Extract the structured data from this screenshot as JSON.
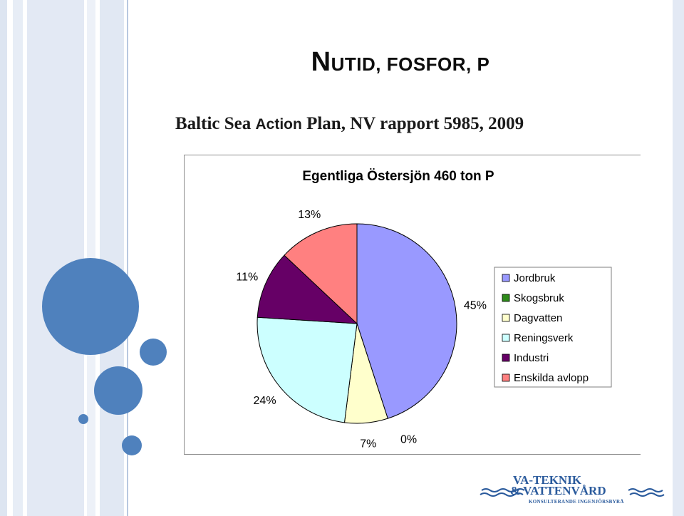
{
  "slide": {
    "title_first_letter": "N",
    "title_rest": "UTID, FOSFOR, P",
    "subtitle_part1": "Baltic Sea ",
    "subtitle_part2": "Action",
    "subtitle_part3": " Plan, NV rapport 5985, 2009"
  },
  "decor": {
    "accent_color": "#4f81bd",
    "stripe_color": "#dde5f1"
  },
  "chart_data": {
    "type": "pie",
    "title": "Egentliga Östersjön  460 ton P",
    "legend_position": "right",
    "categories": [
      "Jordbruk",
      "Skogsbruk",
      "Dagvatten",
      "Reningsverk",
      "Industri",
      "Enskilda avlopp"
    ],
    "values": [
      45,
      0,
      7,
      24,
      11,
      13
    ],
    "value_labels": [
      "45%",
      "0%",
      "7%",
      "24%",
      "11%",
      "13%"
    ],
    "colors": [
      "#9999ff",
      "#2e8b1a",
      "#ffffcc",
      "#ccffff",
      "#660066",
      "#ff8080"
    ]
  },
  "logo": {
    "line1": "VA-TEKNIK",
    "line2": "& VATTENVÅRD",
    "line3": "KONSULTERANDE INGENJÖRSBYRÅ"
  }
}
